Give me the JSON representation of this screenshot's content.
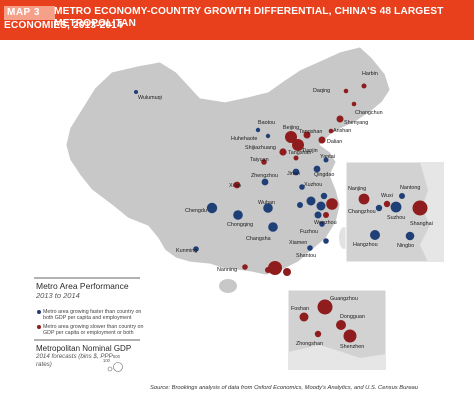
{
  "header": {
    "tag": "MAP 3",
    "title_line1": "METRO ECONOMY-COUNTRY GROWTH DIFFERENTIAL, CHINA'S 48 LARGEST METROPOLITAN",
    "title_line2": "ECONOMIES, 2013-2014"
  },
  "colors": {
    "title_bar": "#e8401c",
    "land": "#c8c8c8",
    "inset_box": "#d2d2d2",
    "faster": "#1f3f77",
    "slower": "#8f1d1d"
  },
  "cities": {
    "wulumuqi": "Wulumuqi",
    "harbin": "Harbin",
    "daqing": "Daqing",
    "changchun": "Changchun",
    "shenyang": "Shenyang",
    "baotou": "Baotou",
    "huhehaote": "Huhehaote",
    "beijing": "Beijing",
    "tangshan": "Tangshan",
    "anshan": "Anshan",
    "tianjin": "Tianjin",
    "dalian": "Dalian",
    "shijiazhuang": "Shijiazhuang",
    "tangshan2": "Tangshan",
    "taiyuan": "Taiyuan",
    "yantai": "Yantai",
    "qingdao": "Qingdao",
    "jinan": "Jinan",
    "xian": "Xi'an",
    "zhengzhou": "Zhengzhou",
    "xuzhou": "Xuzhou",
    "chengdu": "Chengdu",
    "wuhan": "Wuhan",
    "chongqing": "Chongqing",
    "changsha": "Changsha",
    "wenzhou": "Wenzhou",
    "fuzhou": "Fuzhou",
    "kunming": "Kunming",
    "xiamen": "Xiamen",
    "shantou": "Shantou",
    "nanning": "Nanning",
    "nanjing": "Nanjing",
    "wuxi": "Wuxi",
    "nantong": "Nantong",
    "changzhou": "Changzhou",
    "suzhou": "Suzhou",
    "shanghai": "Shanghai",
    "hangzhou": "Hangzhou",
    "ningbo": "Ningbo",
    "foshan": "Foshan",
    "guangzhou": "Guangzhou",
    "dongguan": "Dongguan",
    "zhongshan": "Zhongshan",
    "shenzhen": "Shenzhen"
  },
  "legend": {
    "title": "Metro Area Performance",
    "subtitle": "2013 to 2014",
    "faster": "Metro area growing faster than country on both GDP per capita and employment",
    "slower": "Metro area growing slower than country on GDP per capita or employment or both"
  },
  "gdp_legend": {
    "title": "Metropolitan Nominal GDP",
    "subtitle": "2014 forecasts (bins $, PPP rates)",
    "small": "100",
    "large": "500"
  },
  "source": "Source: Brookings analysis of data from Oxford Economics, Moody's Analytics, and U.S. Census Bureau"
}
